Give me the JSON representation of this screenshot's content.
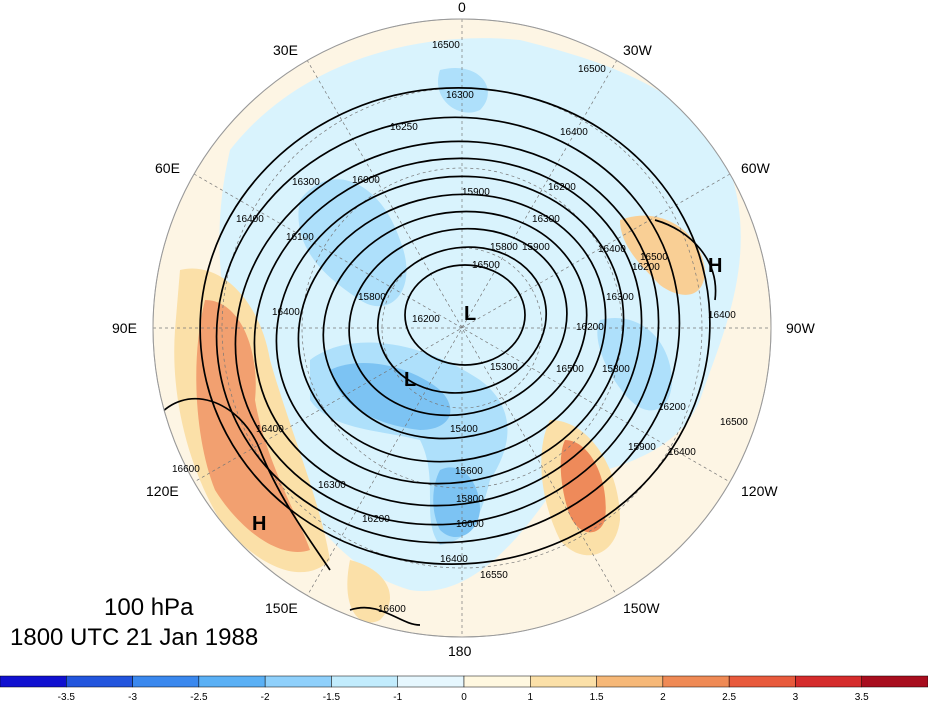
{
  "title": {
    "level": "100 hPa",
    "time": "1800 UTC 21 Jan 1988"
  },
  "longitude_labels": {
    "lon_0": "0",
    "lon_30w": "30W",
    "lon_60w": "60W",
    "lon_90w": "90W",
    "lon_120w": "120W",
    "lon_150w": "150W",
    "lon_180": "180",
    "lon_150e": "150E",
    "lon_120e": "120E",
    "lon_90e": "90E",
    "lon_60e": "60E",
    "lon_30e": "30E"
  },
  "pressure_centers": {
    "low_1": "L",
    "low_2": "L",
    "high_1": "H",
    "high_2": "H"
  },
  "contour_labels": [
    "16500",
    "16500",
    "16300",
    "16300",
    "16400",
    "16400",
    "16250",
    "16200",
    "16000",
    "16100",
    "15900",
    "16300",
    "16200",
    "15800",
    "16400",
    "16500",
    "16400",
    "16300",
    "16200",
    "15900",
    "15800",
    "16500",
    "16200",
    "15300",
    "15900",
    "16400",
    "16500",
    "15400",
    "15600",
    "15800",
    "16000",
    "16400",
    "16550",
    "16600",
    "16600",
    "16200",
    "16300",
    "16400",
    "15800",
    "16500",
    "16400",
    "16200"
  ],
  "colorbar": {
    "colors": [
      "#1010d0",
      "#2255dd",
      "#3a88ee",
      "#5ab0f5",
      "#8fd0fb",
      "#c2ecfd",
      "#e6f7fe",
      "#fff8e0",
      "#fbe0a8",
      "#f6b878",
      "#ef8a55",
      "#e85a3c",
      "#d52c2c",
      "#a80d1e"
    ],
    "ticks": [
      "-3.5",
      "-3",
      "-2.5",
      "-2",
      "-1.5",
      "-1",
      "0",
      "1",
      "1.5",
      "2",
      "2.5",
      "3",
      "3.5"
    ]
  }
}
